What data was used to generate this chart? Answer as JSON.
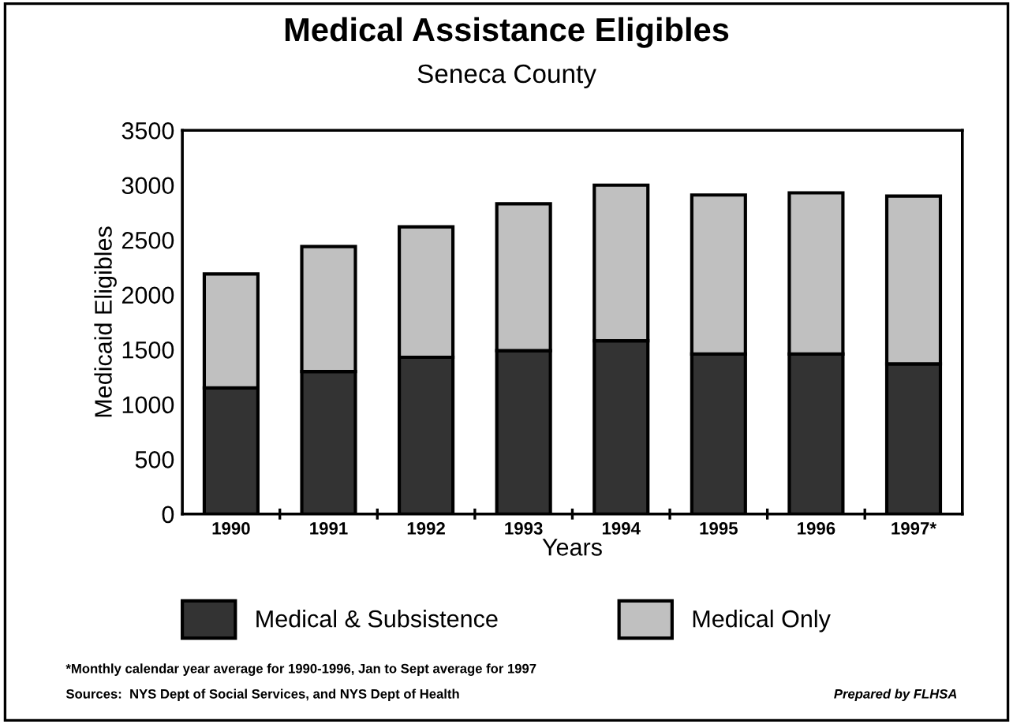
{
  "chart_data": {
    "type": "bar",
    "title": "Medical Assistance Eligibles",
    "subtitle": "Seneca County",
    "xlabel": "Years",
    "ylabel": "Medicaid Eligibles",
    "categories": [
      "1990",
      "1991",
      "1992",
      "1993",
      "1994",
      "1995",
      "1996",
      "1997*"
    ],
    "stacked": true,
    "series": [
      {
        "name": "Medical & Subsistence",
        "color": "#333333",
        "values": [
          1150,
          1300,
          1430,
          1490,
          1580,
          1460,
          1460,
          1370
        ]
      },
      {
        "name": "Medical Only",
        "color": "#c0c0c0",
        "values": [
          1040,
          1140,
          1190,
          1340,
          1420,
          1450,
          1470,
          1530
        ]
      }
    ],
    "ylim": [
      0,
      3500
    ],
    "yticks": [
      0,
      500,
      1000,
      1500,
      2000,
      2500,
      3000,
      3500
    ],
    "legend": "bottom",
    "annotations": [
      "*Monthly calendar year average for 1990-1996, Jan to Sept average for 1997",
      "Sources:  NYS Dept of Social Services, and NYS Dept of Health",
      "Prepared by FLHSA"
    ]
  }
}
